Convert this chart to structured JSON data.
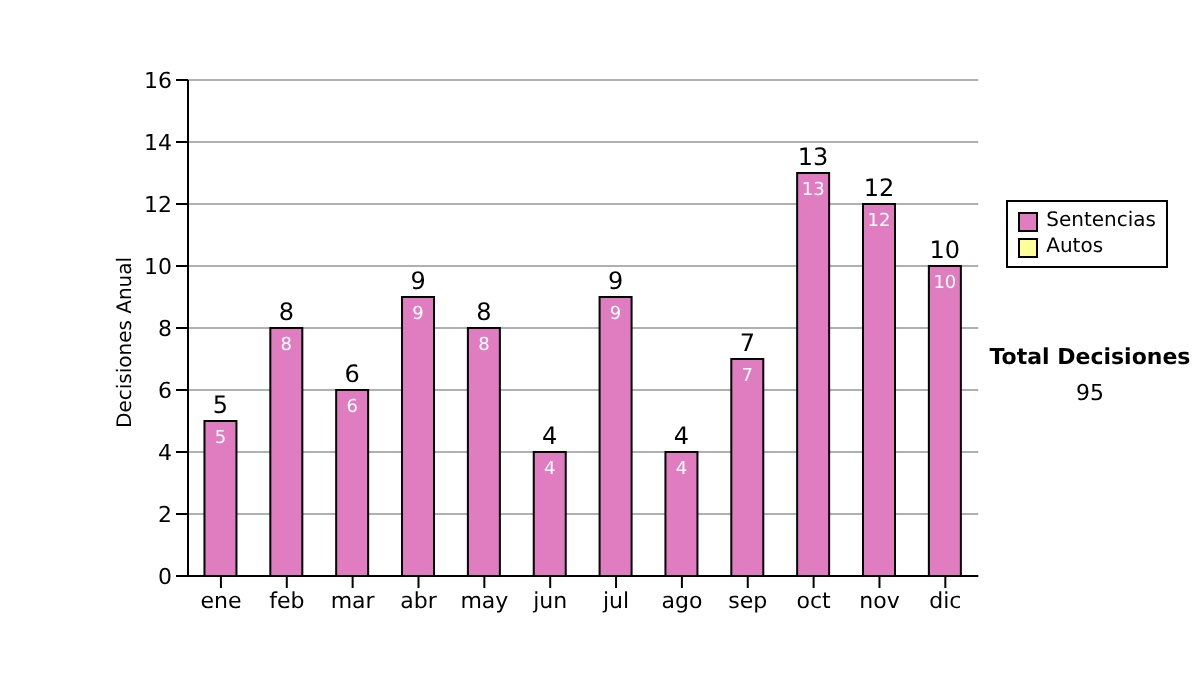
{
  "chart_data": {
    "type": "bar",
    "ylabel": "Decisiones Anual",
    "categories": [
      "ene",
      "feb",
      "mar",
      "abr",
      "may",
      "jun",
      "jul",
      "ago",
      "sep",
      "oct",
      "nov",
      "dic"
    ],
    "stacked": true,
    "series": [
      {
        "name": "Sentencias",
        "color": "#e07cc0",
        "values": [
          5,
          8,
          6,
          9,
          8,
          4,
          9,
          4,
          7,
          13,
          12,
          10
        ],
        "value_labels": [
          "5",
          "8",
          "6",
          "9",
          "8",
          "4",
          "9",
          "4",
          "7",
          "13",
          "12",
          "10"
        ]
      },
      {
        "name": "Autos",
        "color": "#ffff99",
        "values": [
          0,
          0,
          0,
          0,
          0,
          0,
          0,
          0,
          0,
          0,
          0,
          0
        ]
      }
    ],
    "totals": [
      "5",
      "8",
      "6",
      "9",
      "8",
      "4",
      "9",
      "4",
      "7",
      "13",
      "12",
      "10"
    ],
    "ylim": [
      0,
      16
    ],
    "yticks": [
      0,
      2,
      4,
      6,
      8,
      10,
      12,
      14,
      16
    ],
    "grid": "y",
    "legend": "right",
    "annotations": [
      "Total Decisiones",
      "95"
    ]
  }
}
